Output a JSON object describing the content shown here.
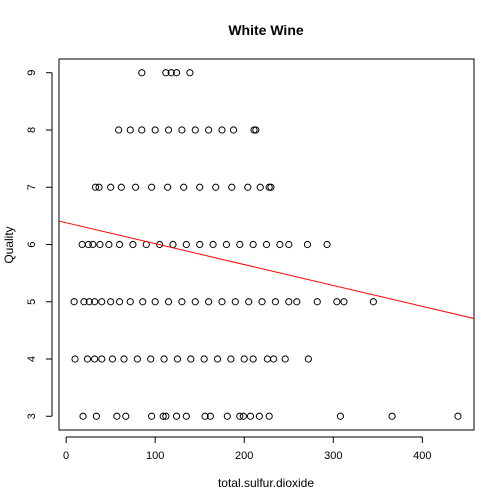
{
  "chart_data": {
    "type": "scatter",
    "title": "White Wine",
    "xlabel": "total.sulfur.dioxide",
    "ylabel": "Quality",
    "xlim": [
      -8,
      458
    ],
    "ylim": [
      2.76,
      9.24
    ],
    "x_ticks": [
      0,
      100,
      200,
      300,
      400
    ],
    "y_ticks": [
      3,
      4,
      5,
      6,
      7,
      8,
      9
    ],
    "grid": false,
    "marker": "open-circle",
    "point_color": "#000000",
    "regression_line": {
      "color": "#ff0000",
      "intercept": 6.38,
      "slope": -0.00365
    },
    "series": [
      {
        "y": 9,
        "x": [
          85,
          112,
          118,
          124,
          139
        ]
      },
      {
        "y": 8,
        "x": [
          59,
          72,
          85,
          100,
          115,
          130,
          145,
          160,
          175,
          188,
          211,
          213
        ]
      },
      {
        "y": 7,
        "x": [
          33,
          37,
          50,
          62,
          78,
          96,
          114,
          132,
          150,
          168,
          186,
          204,
          218,
          228,
          230
        ]
      },
      {
        "y": 6,
        "x": [
          18,
          25,
          30,
          38,
          48,
          60,
          75,
          90,
          105,
          120,
          135,
          150,
          165,
          180,
          195,
          210,
          225,
          240,
          250,
          271,
          293
        ]
      },
      {
        "y": 5,
        "x": [
          9,
          20,
          26,
          32,
          40,
          50,
          60,
          72,
          86,
          100,
          115,
          130,
          145,
          160,
          175,
          190,
          205,
          220,
          235,
          250,
          259,
          282,
          304,
          312,
          345
        ]
      },
      {
        "y": 4,
        "x": [
          10,
          24,
          32,
          40,
          52,
          65,
          80,
          95,
          110,
          125,
          140,
          155,
          170,
          185,
          200,
          210,
          226,
          233,
          246,
          272
        ]
      },
      {
        "y": 3,
        "x": [
          19,
          34,
          57,
          67,
          96,
          109,
          112,
          124,
          135,
          156,
          162,
          181,
          195,
          199,
          207,
          217,
          228,
          308,
          366,
          440
        ]
      }
    ]
  }
}
